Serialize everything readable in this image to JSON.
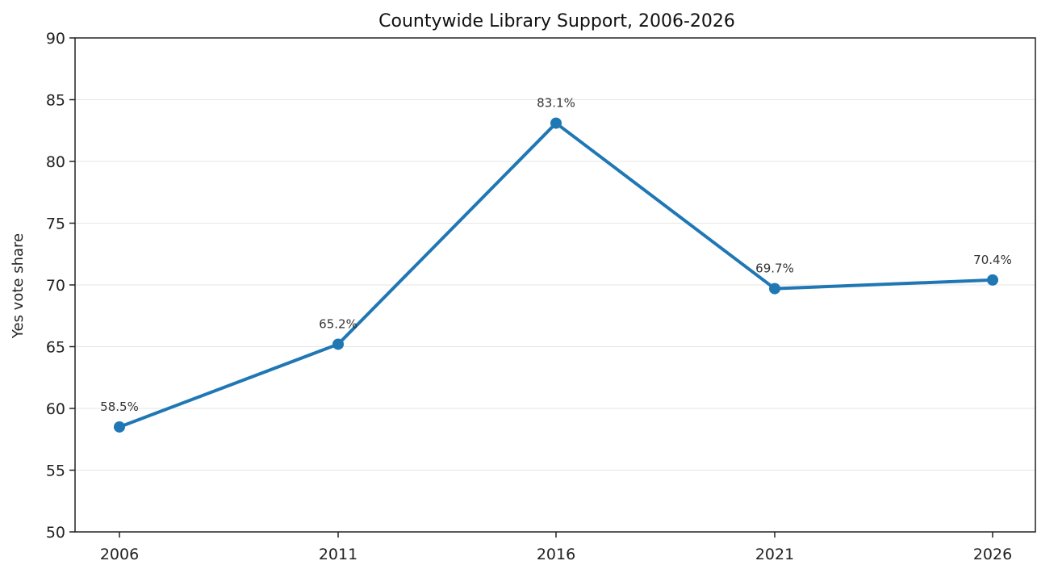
{
  "chart_data": {
    "type": "line",
    "title": "Countywide Library Support, 2006-2026",
    "xlabel": "",
    "ylabel": "Yes vote share",
    "categories": [
      "2006",
      "2011",
      "2016",
      "2021",
      "2026"
    ],
    "series": [
      {
        "values": [
          58.5,
          65.2,
          83.1,
          69.7,
          70.4
        ],
        "labels": [
          "58.5%",
          "65.2%",
          "83.1%",
          "69.7%",
          "70.4%"
        ]
      }
    ],
    "ylim": [
      50,
      90
    ],
    "yticks": [
      "50",
      "55",
      "60",
      "65",
      "70",
      "75",
      "80",
      "85",
      "90"
    ],
    "grid": "horizontal",
    "legend": "none",
    "colors": {
      "line": "#1f77b4",
      "grid": "#e6e6e6",
      "axis": "#222222"
    }
  }
}
